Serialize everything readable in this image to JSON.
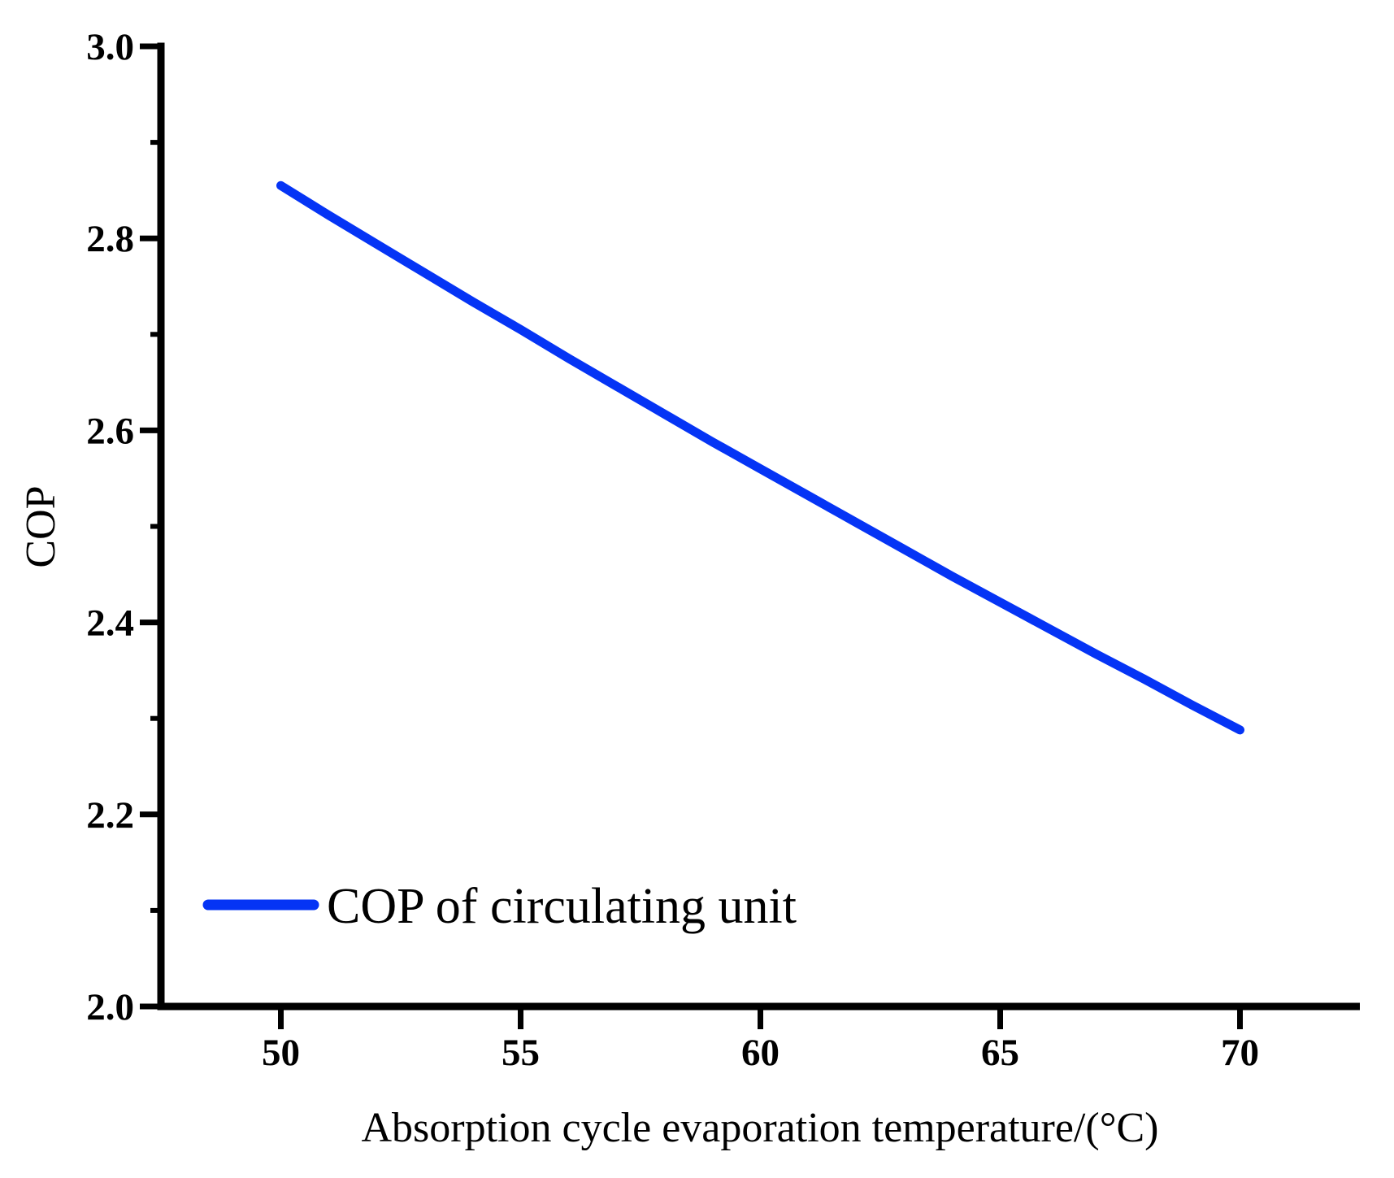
{
  "figure": {
    "background_color": "#ffffff",
    "axis_color": "#000000",
    "text_color": "#000000"
  },
  "chart_data": {
    "type": "line",
    "title": "",
    "xlabel": "Absorption cycle evaporation temperature/(°C)",
    "ylabel": "COP",
    "xlim": [
      47.5,
      72.5
    ],
    "ylim": [
      2.0,
      3.0
    ],
    "x_major_ticks": [
      50,
      55,
      60,
      65,
      70
    ],
    "y_major_ticks": [
      2.0,
      2.2,
      2.4,
      2.6,
      2.8,
      3.0
    ],
    "y_minor_ticks": [
      2.1,
      2.3,
      2.5,
      2.7,
      2.9
    ],
    "grid": false,
    "legend": {
      "position": "inside-lower-left",
      "entries": [
        {
          "label": "COP of circulating unit",
          "color": "#0534f5"
        }
      ]
    },
    "series": [
      {
        "name": "COP of circulating unit",
        "color": "#0534f5",
        "x": [
          50,
          51,
          52,
          53,
          54,
          55,
          56,
          57,
          58,
          59,
          60,
          61,
          62,
          63,
          64,
          65,
          66,
          67,
          68,
          69,
          70
        ],
        "values": [
          2.855,
          2.824,
          2.794,
          2.764,
          2.734,
          2.705,
          2.675,
          2.646,
          2.617,
          2.588,
          2.56,
          2.532,
          2.504,
          2.476,
          2.448,
          2.421,
          2.394,
          2.367,
          2.341,
          2.314,
          2.288
        ]
      }
    ]
  }
}
